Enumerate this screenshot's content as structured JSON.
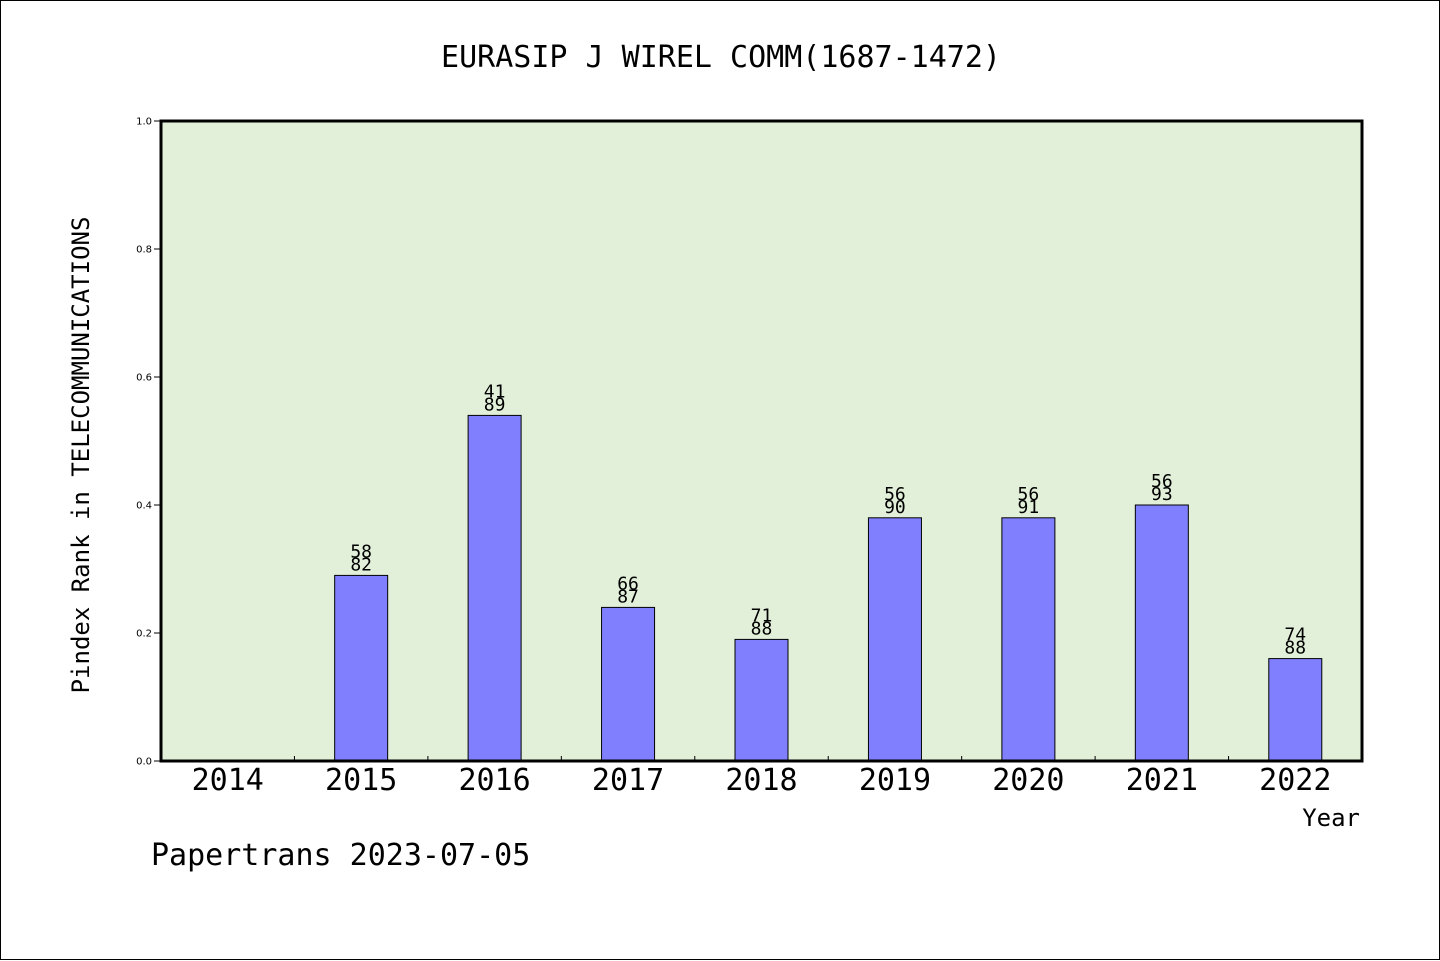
{
  "chart_data": {
    "type": "bar",
    "title": "EURASIP J WIREL COMM(1687-1472)",
    "xlabel": "Year",
    "ylabel": "Pindex Rank in TELECOMMUNICATIONS",
    "categories": [
      "2014",
      "2015",
      "2016",
      "2017",
      "2018",
      "2019",
      "2020",
      "2021",
      "2022"
    ],
    "values": [
      null,
      0.29,
      0.54,
      0.24,
      0.19,
      0.38,
      0.38,
      0.4,
      0.16
    ],
    "labels": [
      null,
      [
        "58",
        "82"
      ],
      [
        "41",
        "89"
      ],
      [
        "66",
        "87"
      ],
      [
        "71",
        "88"
      ],
      [
        "56",
        "90"
      ],
      [
        "56",
        "91"
      ],
      [
        "56",
        "93"
      ],
      [
        "74",
        "88"
      ]
    ],
    "ylim": [
      0,
      1.0
    ],
    "yticks": [
      "0.0",
      "0.2",
      "0.4",
      "0.6",
      "0.8",
      "1.0"
    ],
    "grid": false,
    "colors": {
      "plot_bg": "#e2f0d9",
      "bar": "#8080ff",
      "bar_edge": "#000000"
    }
  },
  "footer": "Papertrans 2023-07-05"
}
